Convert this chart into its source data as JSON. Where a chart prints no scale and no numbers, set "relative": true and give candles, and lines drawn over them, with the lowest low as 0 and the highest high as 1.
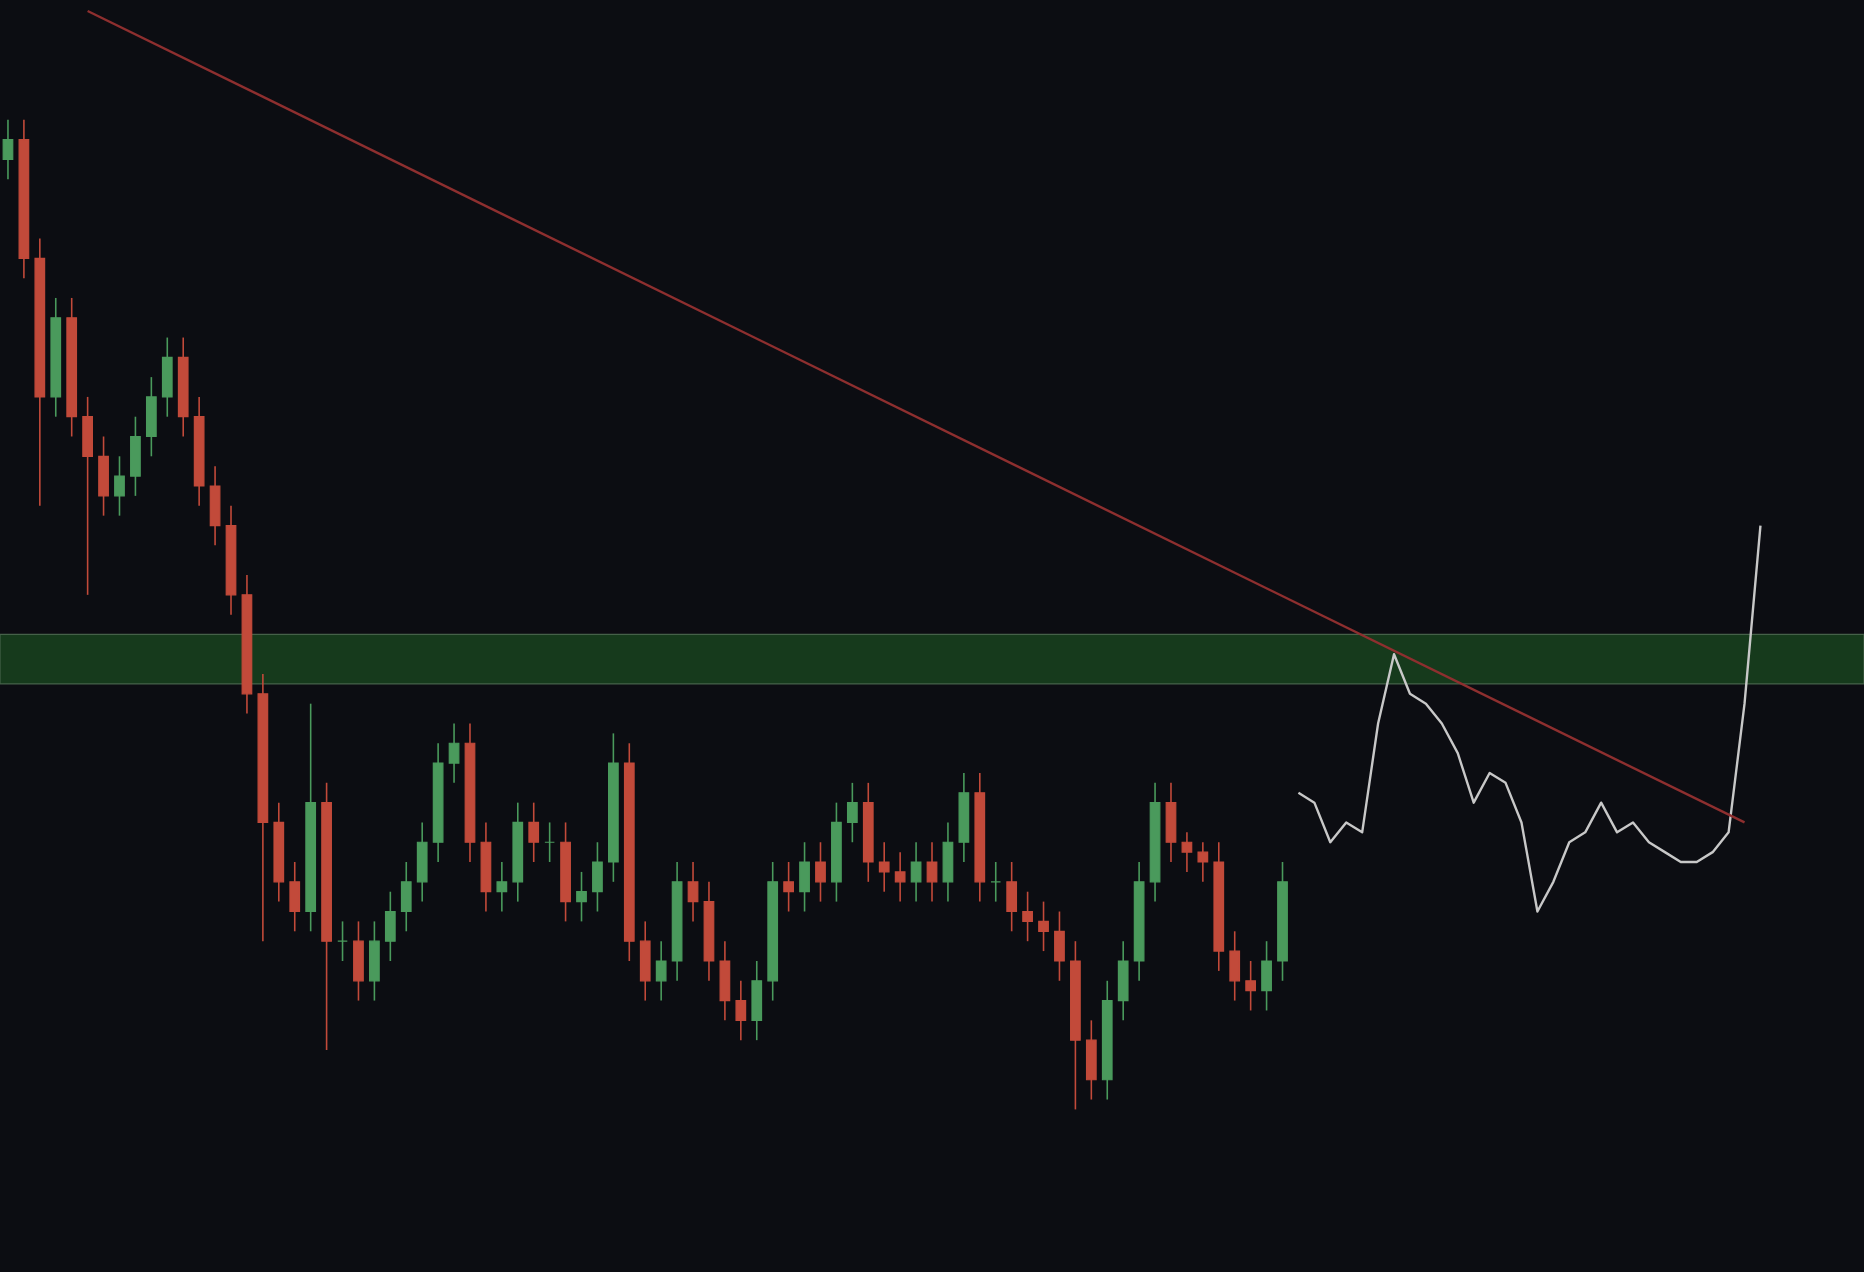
{
  "chart_data": {
    "type": "candlestick",
    "relative": true,
    "categories": [
      null,
      null,
      null,
      null,
      null,
      null,
      null,
      null,
      null,
      null,
      null,
      null,
      null,
      null,
      null,
      null,
      null,
      null,
      null,
      null,
      null,
      null,
      null,
      null,
      null,
      null,
      null,
      null,
      null,
      null,
      null,
      null,
      null,
      null,
      null,
      null,
      null,
      null,
      null,
      null,
      null,
      null,
      null,
      null,
      null,
      null,
      null,
      null,
      null,
      null,
      null,
      null,
      null,
      null,
      null,
      null,
      null,
      null,
      null,
      null,
      null,
      null,
      null,
      null,
      null,
      null,
      null,
      null,
      null,
      null,
      null,
      null,
      null,
      null,
      null,
      null,
      null,
      null,
      null,
      null,
      null,
      null,
      null,
      null,
      null,
      null,
      null,
      null,
      null,
      null,
      null,
      null,
      null,
      null,
      null,
      null,
      null,
      null,
      null,
      null,
      null,
      null,
      null,
      null,
      null,
      null,
      null,
      null,
      null,
      null,
      null
    ],
    "ohlc": [
      [
        0.96,
        1.0,
        0.94,
        0.98
      ],
      [
        0.98,
        1.0,
        0.84,
        0.86
      ],
      [
        0.86,
        0.88,
        0.61,
        0.72
      ],
      [
        0.72,
        0.82,
        0.7,
        0.8
      ],
      [
        0.8,
        0.82,
        0.68,
        0.7
      ],
      [
        0.7,
        0.72,
        0.52,
        0.66
      ],
      [
        0.66,
        0.68,
        0.6,
        0.62
      ],
      [
        0.62,
        0.66,
        0.6,
        0.64
      ],
      [
        0.64,
        0.7,
        0.62,
        0.68
      ],
      [
        0.68,
        0.74,
        0.66,
        0.72
      ],
      [
        0.72,
        0.78,
        0.7,
        0.76
      ],
      [
        0.76,
        0.78,
        0.68,
        0.7
      ],
      [
        0.7,
        0.72,
        0.61,
        0.63
      ],
      [
        0.63,
        0.65,
        0.57,
        0.59
      ],
      [
        0.59,
        0.61,
        0.5,
        0.52
      ],
      [
        0.52,
        0.54,
        0.4,
        0.42
      ],
      [
        0.42,
        0.44,
        0.17,
        0.29
      ],
      [
        0.29,
        0.31,
        0.21,
        0.23
      ],
      [
        0.23,
        0.25,
        0.18,
        0.2
      ],
      [
        0.2,
        0.41,
        0.18,
        0.31
      ],
      [
        0.31,
        0.33,
        0.06,
        0.17
      ],
      [
        0.17,
        0.19,
        0.15,
        0.17
      ],
      [
        0.17,
        0.19,
        0.11,
        0.13
      ],
      [
        0.13,
        0.19,
        0.11,
        0.17
      ],
      [
        0.17,
        0.22,
        0.15,
        0.2
      ],
      [
        0.2,
        0.25,
        0.18,
        0.23
      ],
      [
        0.23,
        0.29,
        0.21,
        0.27
      ],
      [
        0.27,
        0.37,
        0.25,
        0.35
      ],
      [
        0.35,
        0.39,
        0.33,
        0.37
      ],
      [
        0.37,
        0.39,
        0.25,
        0.27
      ],
      [
        0.27,
        0.29,
        0.2,
        0.22
      ],
      [
        0.22,
        0.25,
        0.2,
        0.23
      ],
      [
        0.23,
        0.31,
        0.21,
        0.29
      ],
      [
        0.29,
        0.31,
        0.25,
        0.27
      ],
      [
        0.27,
        0.29,
        0.25,
        0.27
      ],
      [
        0.27,
        0.29,
        0.19,
        0.21
      ],
      [
        0.21,
        0.24,
        0.19,
        0.22
      ],
      [
        0.22,
        0.27,
        0.2,
        0.25
      ],
      [
        0.25,
        0.38,
        0.23,
        0.35
      ],
      [
        0.35,
        0.37,
        0.15,
        0.17
      ],
      [
        0.17,
        0.19,
        0.11,
        0.13
      ],
      [
        0.13,
        0.17,
        0.11,
        0.15
      ],
      [
        0.15,
        0.25,
        0.13,
        0.23
      ],
      [
        0.23,
        0.25,
        0.19,
        0.21
      ],
      [
        0.21,
        0.23,
        0.13,
        0.15
      ],
      [
        0.15,
        0.17,
        0.09,
        0.11
      ],
      [
        0.11,
        0.13,
        0.07,
        0.09
      ],
      [
        0.09,
        0.15,
        0.07,
        0.13
      ],
      [
        0.13,
        0.25,
        0.11,
        0.23
      ],
      [
        0.23,
        0.25,
        0.2,
        0.22
      ],
      [
        0.22,
        0.27,
        0.2,
        0.25
      ],
      [
        0.25,
        0.27,
        0.21,
        0.23
      ],
      [
        0.23,
        0.31,
        0.21,
        0.29
      ],
      [
        0.29,
        0.33,
        0.27,
        0.31
      ],
      [
        0.31,
        0.33,
        0.23,
        0.25
      ],
      [
        0.25,
        0.27,
        0.22,
        0.24
      ],
      [
        0.24,
        0.26,
        0.21,
        0.23
      ],
      [
        0.23,
        0.27,
        0.21,
        0.25
      ],
      [
        0.25,
        0.27,
        0.21,
        0.23
      ],
      [
        0.23,
        0.29,
        0.21,
        0.27
      ],
      [
        0.27,
        0.34,
        0.25,
        0.32
      ],
      [
        0.32,
        0.34,
        0.21,
        0.23
      ],
      [
        0.23,
        0.25,
        0.21,
        0.23
      ],
      [
        0.23,
        0.25,
        0.18,
        0.2
      ],
      [
        0.2,
        0.22,
        0.17,
        0.19
      ],
      [
        0.19,
        0.21,
        0.16,
        0.18
      ],
      [
        0.18,
        0.2,
        0.13,
        0.15
      ],
      [
        0.15,
        0.17,
        0.0,
        0.07
      ],
      [
        0.07,
        0.09,
        0.01,
        0.03
      ],
      [
        0.03,
        0.13,
        0.01,
        0.11
      ],
      [
        0.11,
        0.17,
        0.09,
        0.15
      ],
      [
        0.15,
        0.25,
        0.13,
        0.23
      ],
      [
        0.23,
        0.33,
        0.21,
        0.31
      ],
      [
        0.31,
        0.33,
        0.25,
        0.27
      ],
      [
        0.27,
        0.28,
        0.24,
        0.26
      ],
      [
        0.26,
        0.27,
        0.23,
        0.25
      ],
      [
        0.25,
        0.27,
        0.14,
        0.16
      ],
      [
        0.16,
        0.18,
        0.11,
        0.13
      ],
      [
        0.13,
        0.15,
        0.1,
        0.12
      ],
      [
        0.12,
        0.17,
        0.1,
        0.15
      ],
      [
        0.15,
        0.25,
        0.13,
        0.23
      ],
      null,
      null,
      null,
      null,
      null,
      null,
      null,
      null,
      null,
      null,
      null,
      null,
      null,
      null,
      null,
      null,
      null,
      null,
      null,
      null,
      null,
      null,
      null,
      null,
      null,
      null,
      null,
      null,
      null,
      null
    ],
    "series": [
      {
        "type": "line",
        "color": "#c8c8c8",
        "values": [
          null,
          null,
          null,
          null,
          null,
          null,
          null,
          null,
          null,
          null,
          null,
          null,
          null,
          null,
          null,
          null,
          null,
          null,
          null,
          null,
          null,
          null,
          null,
          null,
          null,
          null,
          null,
          null,
          null,
          null,
          null,
          null,
          null,
          null,
          null,
          null,
          null,
          null,
          null,
          null,
          null,
          null,
          null,
          null,
          null,
          null,
          null,
          null,
          null,
          null,
          null,
          null,
          null,
          null,
          null,
          null,
          null,
          null,
          null,
          null,
          null,
          null,
          null,
          null,
          null,
          null,
          null,
          null,
          null,
          null,
          null,
          null,
          null,
          null,
          null,
          null,
          null,
          null,
          null,
          null,
          null,
          0.32,
          0.31,
          0.27,
          0.29,
          0.28,
          0.39,
          0.46,
          0.42,
          0.41,
          0.39,
          0.36,
          0.31,
          0.34,
          0.33,
          0.29,
          0.2,
          0.23,
          0.27,
          0.28,
          0.31,
          0.28,
          0.29,
          0.27,
          0.26,
          0.25,
          0.25,
          0.26,
          0.28,
          0.41,
          0.59
        ]
      },
      {
        "type": "line",
        "color": "#8e2f2f",
        "values": [
          null,
          null,
          null,
          null,
          null,
          1.11,
          null,
          null,
          null,
          null,
          null,
          null,
          null,
          null,
          null,
          null,
          null,
          null,
          null,
          null,
          null,
          null,
          null,
          null,
          null,
          null,
          null,
          null,
          null,
          null,
          null,
          null,
          null,
          null,
          null,
          null,
          null,
          null,
          null,
          null,
          null,
          null,
          null,
          null,
          null,
          null,
          null,
          null,
          null,
          null,
          null,
          null,
          null,
          null,
          null,
          null,
          null,
          null,
          null,
          null,
          null,
          null,
          null,
          null,
          null,
          null,
          null,
          null,
          null,
          null,
          null,
          null,
          null,
          null,
          null,
          null,
          null,
          null,
          null,
          null,
          null,
          null,
          null,
          null,
          null,
          null,
          null,
          null,
          null,
          null,
          null,
          null,
          null,
          null,
          null,
          null,
          null,
          null,
          null,
          null,
          null,
          null,
          null,
          null,
          null,
          null,
          null,
          null,
          null,
          0.29,
          null
        ]
      }
    ],
    "bands": [
      {
        "axis": "y",
        "from": 0.43,
        "to": 0.48,
        "color": "#163a1c"
      }
    ]
  }
}
